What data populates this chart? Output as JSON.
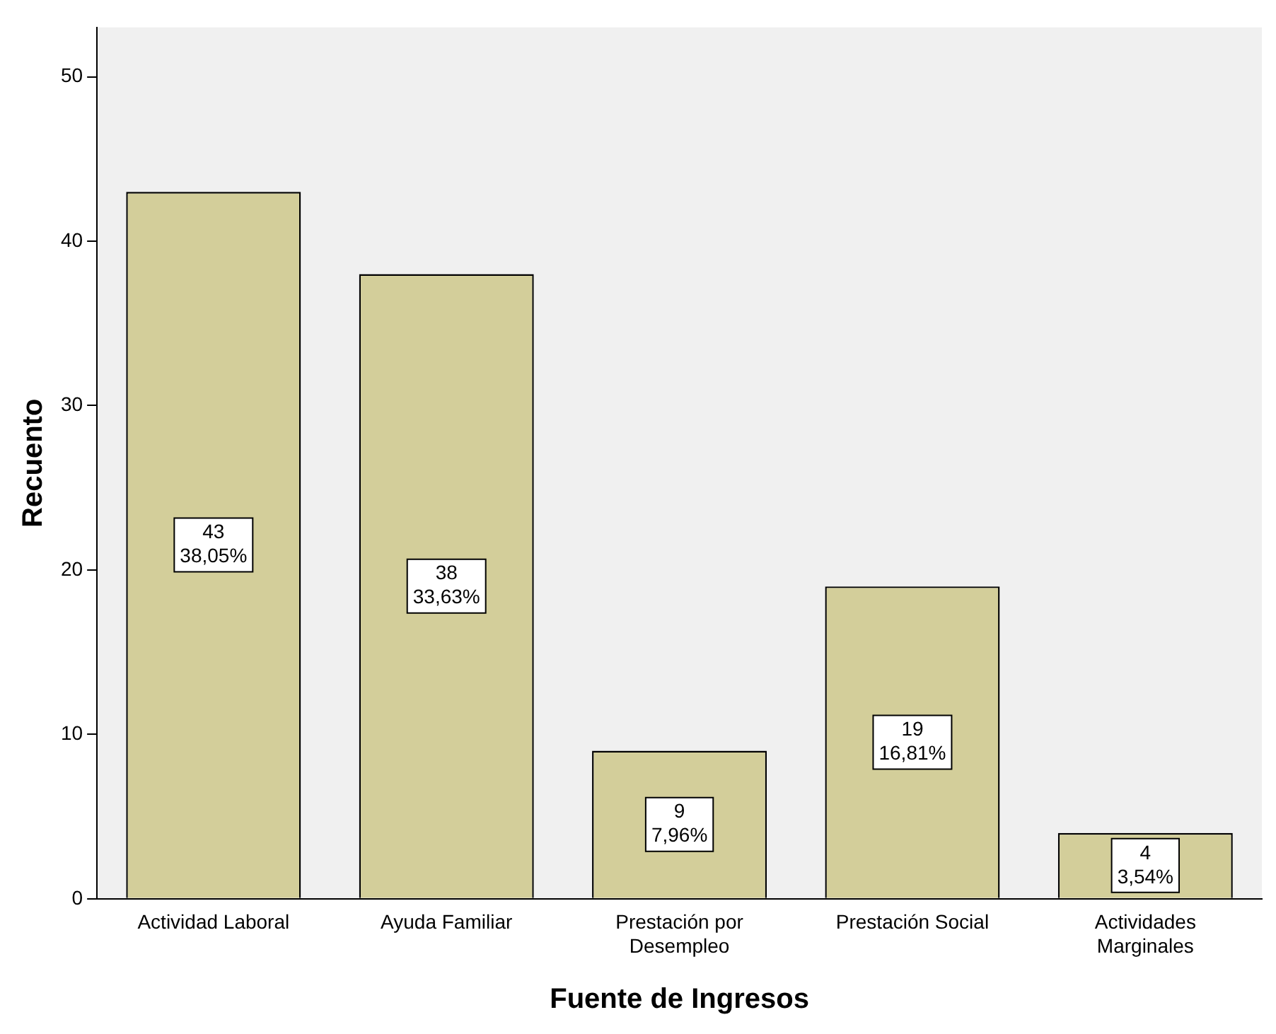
{
  "chart_data": {
    "type": "bar",
    "xlabel": "Fuente de Ingresos",
    "ylabel": "Recuento",
    "categories": [
      "Actividad Laboral",
      "Ayuda Familiar",
      "Prestación por Desempleo",
      "Prestación Social",
      "Actividades Marginales"
    ],
    "values": [
      43,
      38,
      9,
      19,
      4
    ],
    "value_labels": [
      "43\n38,05%",
      "38\n33,63%",
      "9\n7,96%",
      "19\n16,81%",
      "4\n3,54%"
    ],
    "color": "#d3ce9a",
    "ylim": [
      0,
      53
    ],
    "yticks": [
      0,
      10,
      20,
      30,
      40,
      50
    ],
    "grid": false,
    "legend": false
  }
}
